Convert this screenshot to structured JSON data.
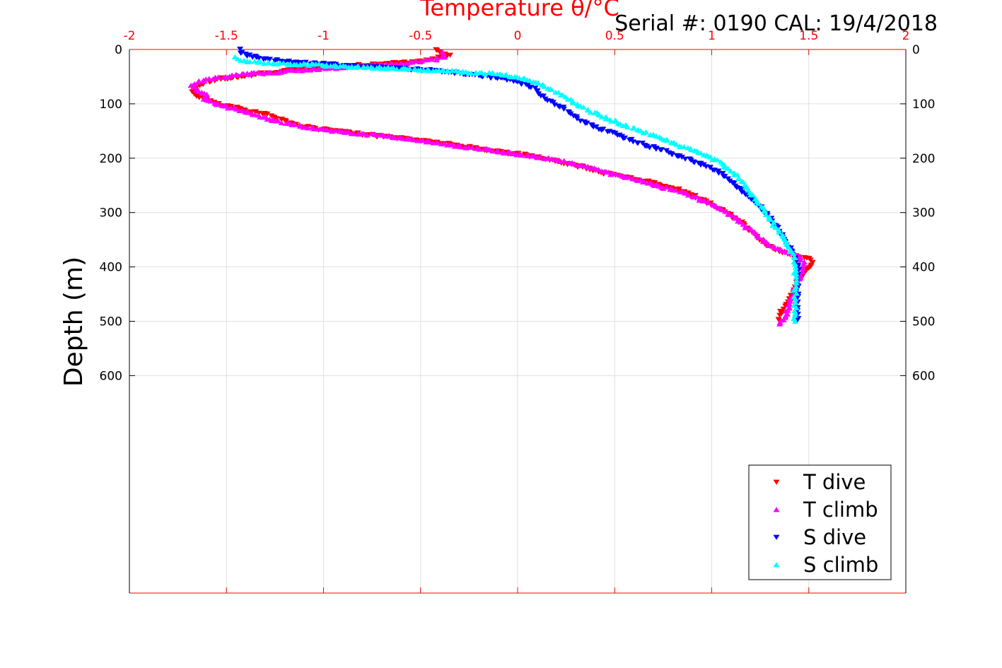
{
  "chart_data": {
    "type": "scatter",
    "title": "Temperature θ/°C",
    "subtitle": "Serial #: 0190  CAL: 19/4/2018",
    "xlabel": "Temperature θ/°C",
    "ylabel": "Depth (m)",
    "xlim": [
      -2,
      2
    ],
    "ylim": [
      0,
      1000
    ],
    "y_reversed": true,
    "x_axis_position": "top",
    "x_ticks": [
      "-2",
      "-1.5",
      "-1",
      "-0.5",
      "0",
      "0.5",
      "1",
      "1.5",
      "2"
    ],
    "x_tick_values": [
      -2,
      -1.5,
      -1,
      -0.5,
      0,
      0.5,
      1,
      1.5,
      2
    ],
    "y_ticks": [
      "0",
      "100",
      "200",
      "300",
      "400",
      "500",
      "600"
    ],
    "y_tick_values": [
      0,
      100,
      200,
      300,
      400,
      500,
      600
    ],
    "grid": true,
    "legend_position": "bottom-right",
    "colors": {
      "axis_top": "#ff0000",
      "axis_left": "#000000",
      "grid": "#e0e0e0"
    },
    "series": [
      {
        "name": "T dive",
        "color": "#ff0000",
        "marker": "triangle-down",
        "points": [
          [
            -0.42,
            0
          ],
          [
            -0.4,
            5
          ],
          [
            -0.35,
            12
          ],
          [
            -0.5,
            22
          ],
          [
            -0.75,
            28
          ],
          [
            -1.0,
            33
          ],
          [
            -1.2,
            40
          ],
          [
            -1.4,
            48
          ],
          [
            -1.55,
            55
          ],
          [
            -1.62,
            62
          ],
          [
            -1.65,
            70
          ],
          [
            -1.67,
            78
          ],
          [
            -1.65,
            85
          ],
          [
            -1.6,
            92
          ],
          [
            -1.55,
            100
          ],
          [
            -1.5,
            105
          ],
          [
            -1.45,
            108
          ],
          [
            -1.4,
            112
          ],
          [
            -1.3,
            118
          ],
          [
            -1.25,
            125
          ],
          [
            -1.2,
            130
          ],
          [
            -1.15,
            138
          ],
          [
            -1.05,
            145
          ],
          [
            -0.9,
            152
          ],
          [
            -0.75,
            158
          ],
          [
            -0.55,
            165
          ],
          [
            -0.4,
            172
          ],
          [
            -0.25,
            180
          ],
          [
            -0.1,
            188
          ],
          [
            0.05,
            195
          ],
          [
            0.15,
            202
          ],
          [
            0.25,
            210
          ],
          [
            0.35,
            218
          ],
          [
            0.45,
            228
          ],
          [
            0.55,
            235
          ],
          [
            0.7,
            245
          ],
          [
            0.8,
            255
          ],
          [
            0.9,
            268
          ],
          [
            0.98,
            282
          ],
          [
            1.05,
            295
          ],
          [
            1.12,
            310
          ],
          [
            1.17,
            325
          ],
          [
            1.22,
            340
          ],
          [
            1.27,
            355
          ],
          [
            1.32,
            368
          ],
          [
            1.4,
            378
          ],
          [
            1.5,
            385
          ],
          [
            1.52,
            392
          ],
          [
            1.5,
            400
          ],
          [
            1.48,
            410
          ],
          [
            1.45,
            420
          ],
          [
            1.44,
            430
          ],
          [
            1.43,
            440
          ],
          [
            1.42,
            450
          ],
          [
            1.4,
            460
          ],
          [
            1.38,
            470
          ],
          [
            1.36,
            480
          ],
          [
            1.35,
            490
          ],
          [
            1.35,
            500
          ]
        ]
      },
      {
        "name": "T climb",
        "color": "#ff00ff",
        "marker": "triangle-up",
        "points": [
          [
            -0.38,
            5
          ],
          [
            -0.38,
            15
          ],
          [
            -0.55,
            25
          ],
          [
            -0.8,
            30
          ],
          [
            -1.0,
            35
          ],
          [
            -1.2,
            40
          ],
          [
            -1.38,
            45
          ],
          [
            -1.55,
            52
          ],
          [
            -1.65,
            60
          ],
          [
            -1.68,
            68
          ],
          [
            -1.65,
            75
          ],
          [
            -1.6,
            82
          ],
          [
            -1.62,
            90
          ],
          [
            -1.58,
            97
          ],
          [
            -1.5,
            105
          ],
          [
            -1.42,
            112
          ],
          [
            -1.35,
            120
          ],
          [
            -1.28,
            128
          ],
          [
            -1.2,
            135
          ],
          [
            -1.1,
            142
          ],
          [
            -0.95,
            150
          ],
          [
            -0.8,
            155
          ],
          [
            -0.6,
            162
          ],
          [
            -0.45,
            170
          ],
          [
            -0.3,
            178
          ],
          [
            -0.15,
            185
          ],
          [
            0.0,
            192
          ],
          [
            0.12,
            198
          ],
          [
            0.22,
            205
          ],
          [
            0.32,
            213
          ],
          [
            0.42,
            222
          ],
          [
            0.52,
            232
          ],
          [
            0.62,
            240
          ],
          [
            0.72,
            250
          ],
          [
            0.82,
            260
          ],
          [
            0.92,
            272
          ],
          [
            1.0,
            285
          ],
          [
            1.08,
            300
          ],
          [
            1.15,
            318
          ],
          [
            1.2,
            333
          ],
          [
            1.25,
            348
          ],
          [
            1.3,
            360
          ],
          [
            1.38,
            372
          ],
          [
            1.45,
            380
          ],
          [
            1.47,
            390
          ],
          [
            1.47,
            400
          ],
          [
            1.46,
            410
          ],
          [
            1.45,
            420
          ],
          [
            1.44,
            430
          ],
          [
            1.43,
            440
          ],
          [
            1.42,
            450
          ],
          [
            1.41,
            460
          ],
          [
            1.4,
            470
          ],
          [
            1.39,
            480
          ],
          [
            1.38,
            490
          ],
          [
            1.36,
            500
          ],
          [
            1.35,
            505
          ]
        ]
      },
      {
        "name": "S dive",
        "color": "#0000ff",
        "marker": "triangle-down",
        "points": [
          [
            -1.43,
            0
          ],
          [
            -1.42,
            8
          ],
          [
            -1.3,
            18
          ],
          [
            -1.1,
            25
          ],
          [
            -0.85,
            30
          ],
          [
            -0.6,
            35
          ],
          [
            -0.4,
            40
          ],
          [
            -0.2,
            48
          ],
          [
            -0.05,
            55
          ],
          [
            0.05,
            65
          ],
          [
            0.1,
            75
          ],
          [
            0.12,
            85
          ],
          [
            0.17,
            95
          ],
          [
            0.22,
            105
          ],
          [
            0.27,
            115
          ],
          [
            0.3,
            125
          ],
          [
            0.35,
            135
          ],
          [
            0.42,
            145
          ],
          [
            0.5,
            155
          ],
          [
            0.57,
            165
          ],
          [
            0.65,
            175
          ],
          [
            0.72,
            183
          ],
          [
            0.8,
            192
          ],
          [
            0.88,
            202
          ],
          [
            0.95,
            212
          ],
          [
            1.02,
            222
          ],
          [
            1.07,
            235
          ],
          [
            1.12,
            250
          ],
          [
            1.17,
            265
          ],
          [
            1.22,
            280
          ],
          [
            1.26,
            295
          ],
          [
            1.3,
            310
          ],
          [
            1.33,
            325
          ],
          [
            1.36,
            340
          ],
          [
            1.38,
            355
          ],
          [
            1.41,
            370
          ],
          [
            1.43,
            382
          ],
          [
            1.44,
            395
          ],
          [
            1.44,
            410
          ],
          [
            1.44,
            425
          ],
          [
            1.44,
            440
          ],
          [
            1.44,
            455
          ],
          [
            1.44,
            470
          ],
          [
            1.44,
            485
          ],
          [
            1.44,
            495
          ],
          [
            1.43,
            500
          ]
        ]
      },
      {
        "name": "S climb",
        "color": "#00ffff",
        "marker": "triangle-up",
        "points": [
          [
            -1.45,
            15
          ],
          [
            -1.4,
            22
          ],
          [
            -1.25,
            26
          ],
          [
            -1.05,
            28
          ],
          [
            -0.8,
            32
          ],
          [
            -0.55,
            36
          ],
          [
            -0.35,
            40
          ],
          [
            -0.15,
            44
          ],
          [
            0.0,
            50
          ],
          [
            0.08,
            58
          ],
          [
            0.13,
            66
          ],
          [
            0.18,
            75
          ],
          [
            0.23,
            85
          ],
          [
            0.28,
            95
          ],
          [
            0.33,
            105
          ],
          [
            0.38,
            115
          ],
          [
            0.45,
            125
          ],
          [
            0.52,
            135
          ],
          [
            0.6,
            145
          ],
          [
            0.68,
            155
          ],
          [
            0.75,
            165
          ],
          [
            0.82,
            175
          ],
          [
            0.9,
            185
          ],
          [
            0.97,
            195
          ],
          [
            1.03,
            205
          ],
          [
            1.08,
            218
          ],
          [
            1.13,
            232
          ],
          [
            1.17,
            248
          ],
          [
            1.2,
            262
          ],
          [
            1.23,
            277
          ],
          [
            1.26,
            292
          ],
          [
            1.29,
            307
          ],
          [
            1.32,
            322
          ],
          [
            1.35,
            337
          ],
          [
            1.38,
            352
          ],
          [
            1.4,
            367
          ],
          [
            1.42,
            380
          ],
          [
            1.43,
            395
          ],
          [
            1.43,
            410
          ],
          [
            1.43,
            425
          ],
          [
            1.43,
            440
          ],
          [
            1.43,
            455
          ],
          [
            1.43,
            470
          ],
          [
            1.43,
            485
          ],
          [
            1.43,
            500
          ]
        ]
      }
    ]
  }
}
